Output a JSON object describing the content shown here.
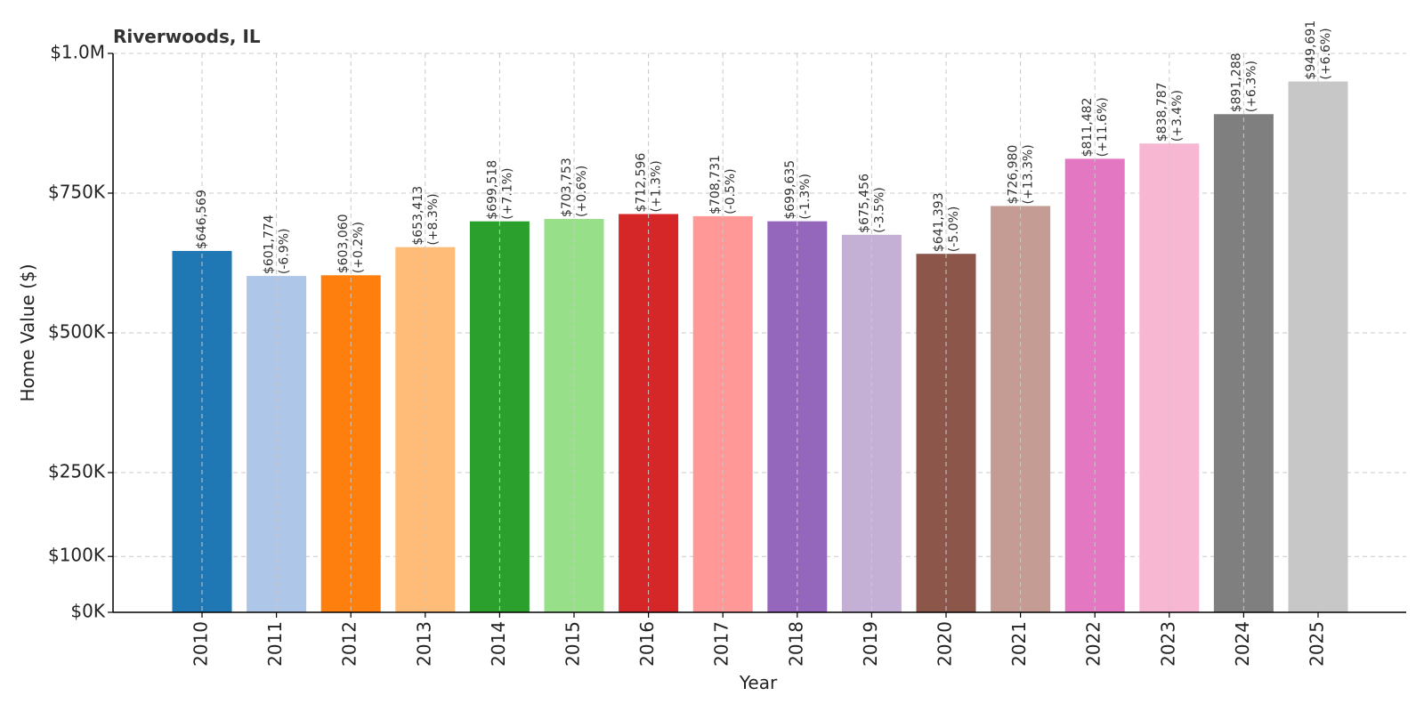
{
  "chart_data": {
    "type": "bar",
    "title": "Riverwoods, IL",
    "xlabel": "Year",
    "ylabel": "Home Value ($)",
    "ylim": [
      0,
      1000000
    ],
    "yticks": [
      {
        "value": 0,
        "label": "$0K"
      },
      {
        "value": 100000,
        "label": "$100K"
      },
      {
        "value": 250000,
        "label": "$250K"
      },
      {
        "value": 500000,
        "label": "$500K"
      },
      {
        "value": 750000,
        "label": "$750K"
      },
      {
        "value": 1000000,
        "label": "$1.0M"
      }
    ],
    "grid": true,
    "categories": [
      "2010",
      "2011",
      "2012",
      "2013",
      "2014",
      "2015",
      "2016",
      "2017",
      "2018",
      "2019",
      "2020",
      "2021",
      "2022",
      "2023",
      "2024",
      "2025"
    ],
    "values": [
      646569,
      601774,
      603060,
      653413,
      699518,
      703753,
      712596,
      708731,
      699635,
      675456,
      641393,
      726980,
      811482,
      838787,
      891288,
      949691
    ],
    "value_labels": [
      "$646,569",
      "$601,774",
      "$603,060",
      "$653,413",
      "$699,518",
      "$703,753",
      "$712,596",
      "$708,731",
      "$699,635",
      "$675,456",
      "$641,393",
      "$726,980",
      "$811,482",
      "$838,787",
      "$891,288",
      "$949,691"
    ],
    "change_labels": [
      "",
      "(-6.9%)",
      "(+0.2%)",
      "(+8.3%)",
      "(+7.1%)",
      "(+0.6%)",
      "(+1.3%)",
      "(-0.5%)",
      "(-1.3%)",
      "(-3.5%)",
      "(-5.0%)",
      "(+13.3%)",
      "(+11.6%)",
      "(+3.4%)",
      "(+6.3%)",
      "(+6.6%)"
    ],
    "colors": [
      "#1f77b4",
      "#aec7e8",
      "#ff7f0e",
      "#ffbb78",
      "#2ca02c",
      "#98df8a",
      "#d62728",
      "#ff9896",
      "#9467bd",
      "#c5b0d5",
      "#8c564b",
      "#c49c94",
      "#e377c2",
      "#f7b6d2",
      "#7f7f7f",
      "#c7c7c7"
    ]
  }
}
